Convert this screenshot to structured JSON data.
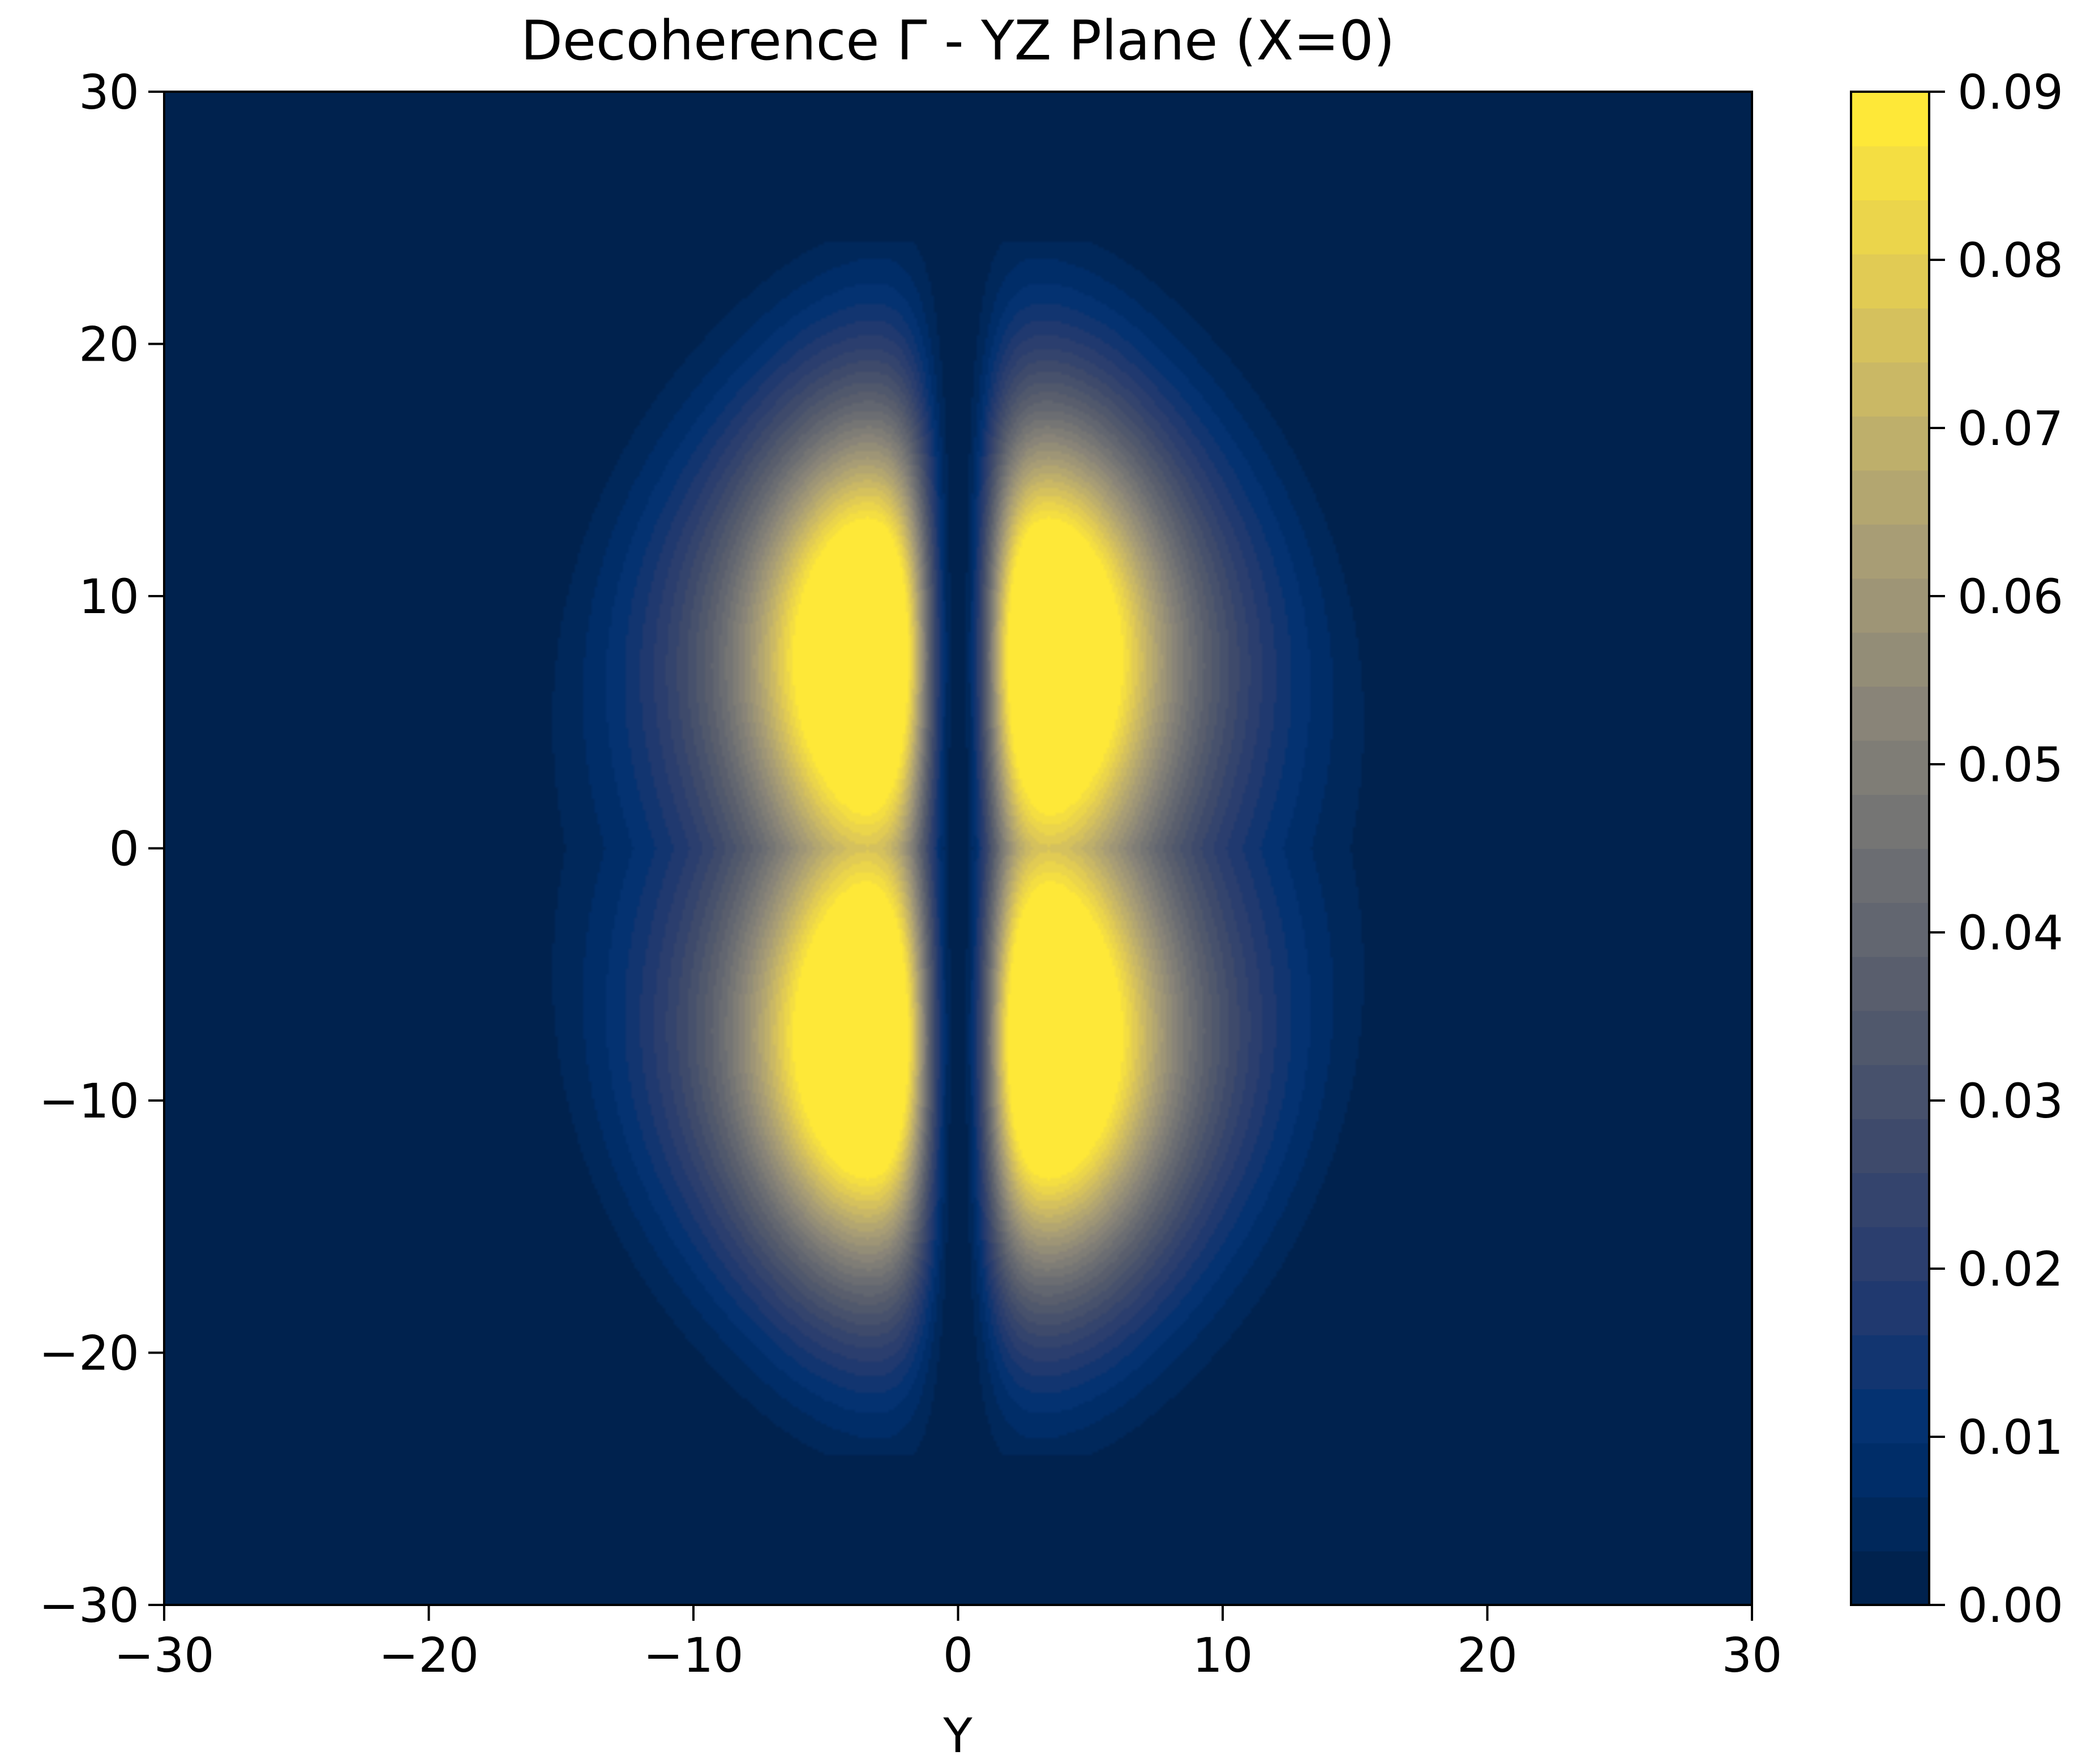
{
  "chart_data": {
    "type": "heatmap",
    "title": "Decoherence Γ - YZ Plane (X=0)",
    "xlabel": "Y",
    "ylabel": "",
    "xlim": [
      -30,
      30
    ],
    "ylim": [
      -30,
      30
    ],
    "x_ticks": [
      "−30",
      "−20",
      "−10",
      "0",
      "10",
      "20",
      "30"
    ],
    "y_ticks": [
      "30",
      "20",
      "10",
      "0",
      "−10",
      "−20",
      "−30"
    ],
    "colorbar": {
      "range": [
        0.0,
        0.09
      ],
      "ticks": [
        "0.09",
        "0.08",
        "0.07",
        "0.06",
        "0.05",
        "0.04",
        "0.03",
        "0.02",
        "0.01",
        "0.00"
      ],
      "colormap": "cividis",
      "levels": 28
    },
    "peaks": [
      {
        "y": -3,
        "z": 9,
        "value": 0.09
      },
      {
        "y": 3,
        "z": 9,
        "value": 0.09
      },
      {
        "y": -3,
        "z": -9,
        "value": 0.09
      },
      {
        "y": 3,
        "z": -9,
        "value": 0.09
      }
    ],
    "grid": false
  }
}
